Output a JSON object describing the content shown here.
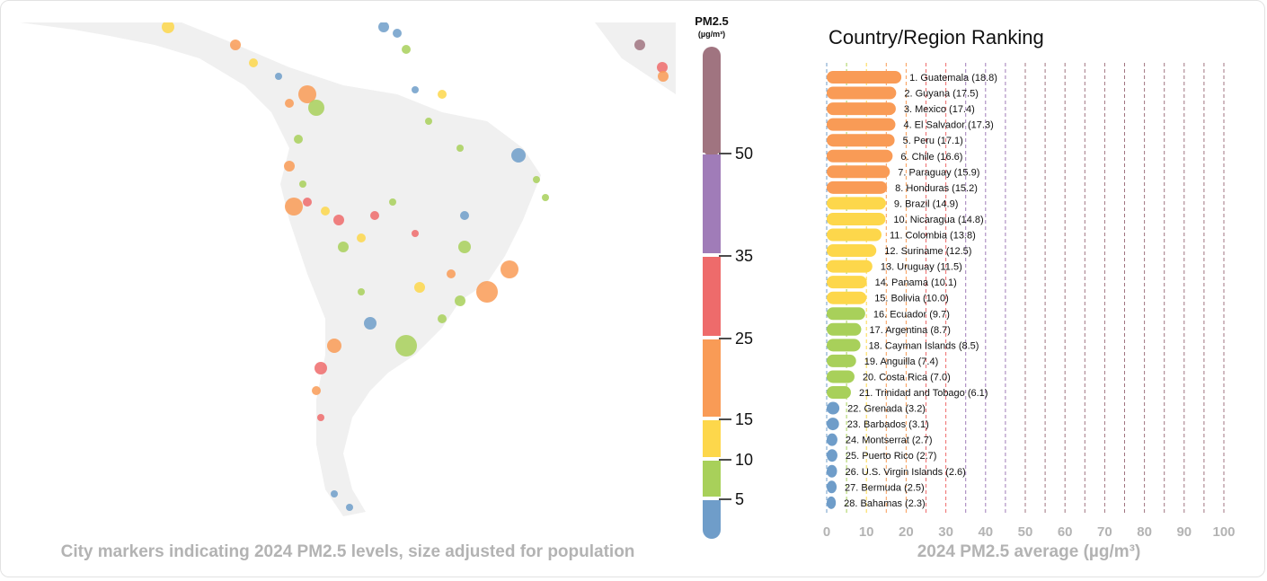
{
  "map": {
    "caption": "City markers indicating 2024 PM2.5 levels, size adjusted for population"
  },
  "legend": {
    "title": "PM2.5",
    "unit": "(µg/m³)",
    "bands": [
      {
        "min": 0,
        "max": 5,
        "color": "#6f9dc9"
      },
      {
        "min": 5,
        "max": 10,
        "color": "#a8d05a"
      },
      {
        "min": 10,
        "max": 15,
        "color": "#fdd74b"
      },
      {
        "min": 15,
        "max": 25,
        "color": "#f99b56"
      },
      {
        "min": 25,
        "max": 35,
        "color": "#ee6b6b"
      },
      {
        "min": 35,
        "max": 50,
        "color": "#a07cb8"
      },
      {
        "min": 50,
        "max": null,
        "color": "#a07480"
      }
    ],
    "ticks": [
      "50",
      "35",
      "25",
      "15",
      "10",
      "5"
    ]
  },
  "chart_data": {
    "type": "bar",
    "orientation": "horizontal",
    "title": "Country/Region Ranking",
    "xlabel": "2024 PM2.5 average (µg/m³)",
    "xlim": [
      0,
      100
    ],
    "xticks": [
      "0",
      "10",
      "20",
      "30",
      "40",
      "50",
      "60",
      "70",
      "80",
      "90",
      "100"
    ],
    "grid": "vertical dashed every 5, colored by PM2.5 band",
    "categories": [
      "Guatemala",
      "Guyana",
      "Mexico",
      "El Salvador",
      "Peru",
      "Chile",
      "Paraguay",
      "Honduras",
      "Brazil",
      "Nicaragua",
      "Colombia",
      "Suriname",
      "Uruguay",
      "Panama",
      "Bolivia",
      "Ecuador",
      "Argentina",
      "Cayman Islands",
      "Anguilla",
      "Costa Rica",
      "Trinidad and Tobago",
      "Grenada",
      "Barbados",
      "Montserrat",
      "Puerto Rico",
      "U.S. Virgin Islands",
      "Bermuda",
      "Bahamas"
    ],
    "values": [
      18.8,
      17.5,
      17.4,
      17.3,
      17.1,
      16.6,
      15.9,
      15.2,
      14.9,
      14.8,
      13.8,
      12.5,
      11.5,
      10.1,
      10.0,
      9.7,
      8.7,
      8.5,
      7.4,
      7.0,
      6.1,
      3.2,
      3.1,
      2.7,
      2.7,
      2.6,
      2.5,
      2.3
    ],
    "labels": [
      "1. Guatemala (18.8)",
      "2. Guyana (17.5)",
      "3. Mexico (17.4)",
      "4. El Salvador (17.3)",
      "5. Peru (17.1)",
      "6. Chile (16.6)",
      "7. Paraguay (15.9)",
      "8. Honduras (15.2)",
      "9. Brazil (14.9)",
      "10. Nicaragua (14.8)",
      "11. Colombia (13.8)",
      "12. Suriname (12.5)",
      "13. Uruguay (11.5)",
      "14. Panama (10.1)",
      "15. Bolivia (10.0)",
      "16. Ecuador (9.7)",
      "17. Argentina (8.7)",
      "18. Cayman Islands (8.5)",
      "19. Anguilla (7.4)",
      "20. Costa Rica (7.0)",
      "21. Trinidad and Tobago (6.1)",
      "22. Grenada (3.2)",
      "23. Barbados (3.1)",
      "24. Montserrat (2.7)",
      "25. Puerto Rico (2.7)",
      "26. U.S. Virgin Islands (2.6)",
      "27. Bermuda (2.5)",
      "28. Bahamas (2.3)"
    ]
  }
}
